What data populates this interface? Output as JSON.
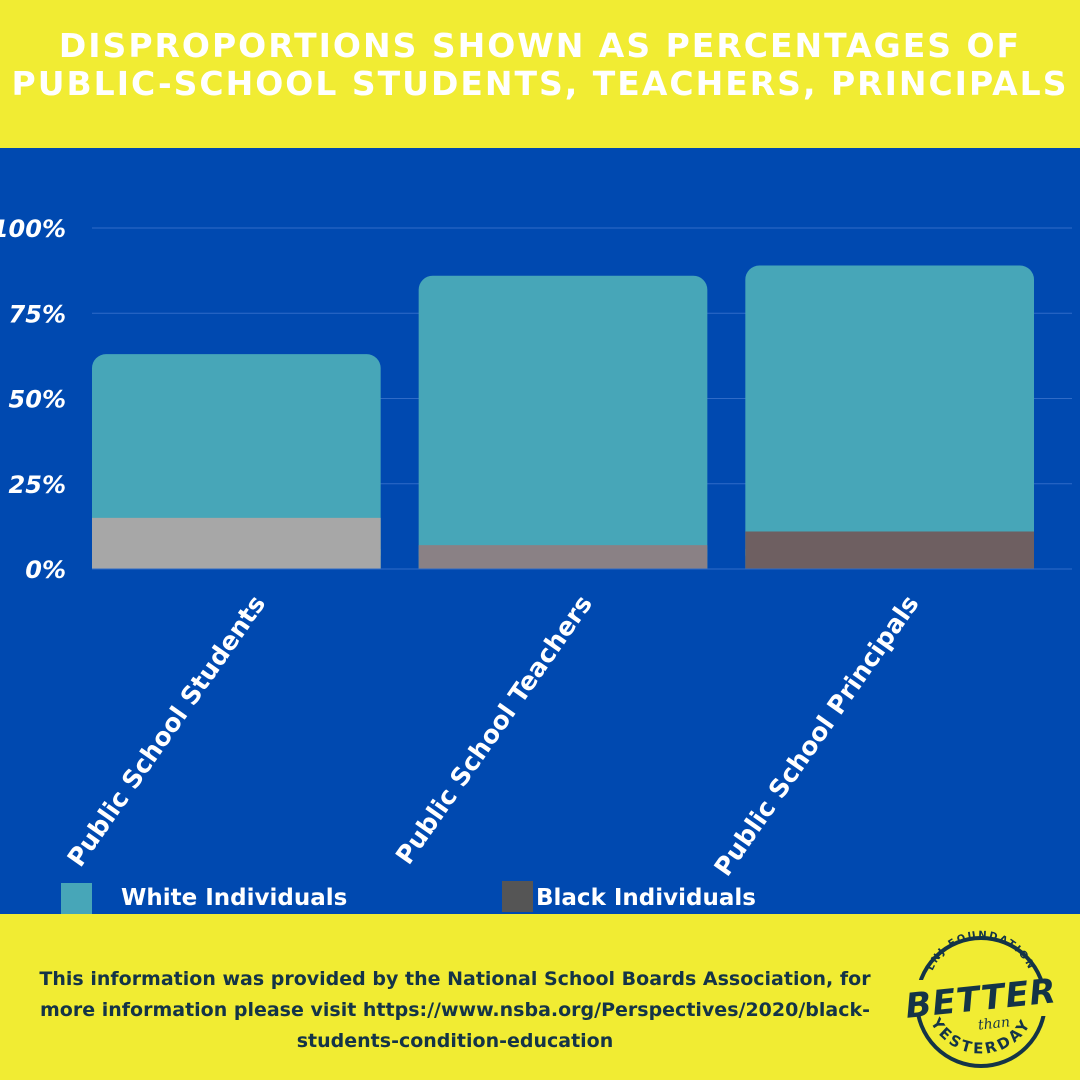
{
  "header": {
    "title_line1": "DISPROPORTIONS SHOWN AS PERCENTAGES OF",
    "title_line2": "PUBLIC-SCHOOL STUDENTS, TEACHERS, PRINCIPALS"
  },
  "colors": {
    "header_bg": "#f1ec33",
    "panel_bg": "#0049b0",
    "white_series": "#47a6b8",
    "black_series_legend": "#555555",
    "black_series_bars": [
      "#a7a7a7",
      "#8a8185",
      "#6e5f61"
    ]
  },
  "chart_data": {
    "type": "bar",
    "stacked": false,
    "overlapping": true,
    "categories": [
      "Public School Students",
      "Public School Teachers",
      "Public School Principals"
    ],
    "series": [
      {
        "name": "White Individuals",
        "values": [
          63,
          86,
          89
        ]
      },
      {
        "name": "Black Individuals",
        "values": [
          15,
          7,
          11
        ]
      }
    ],
    "ylim": [
      0,
      100
    ],
    "yticks": [
      "0%",
      "25%",
      "50%",
      "75%",
      "100%"
    ],
    "ytick_values": [
      0,
      25,
      50,
      75,
      100
    ],
    "grid": true,
    "legend_position": "bottom"
  },
  "legend": {
    "white_label": "White Individuals",
    "black_label": "Black Individuals"
  },
  "footer": {
    "source_text": "This information was provided by the National School Boards Association, for more information please visit https://www.nsba.org/Perspectives/2020/black-students-condition-education"
  },
  "logo": {
    "top_text": "LNJ FOUNDATION",
    "main_text": "BETTER",
    "small_text": "than",
    "bottom_text": "YESTERDAY"
  }
}
